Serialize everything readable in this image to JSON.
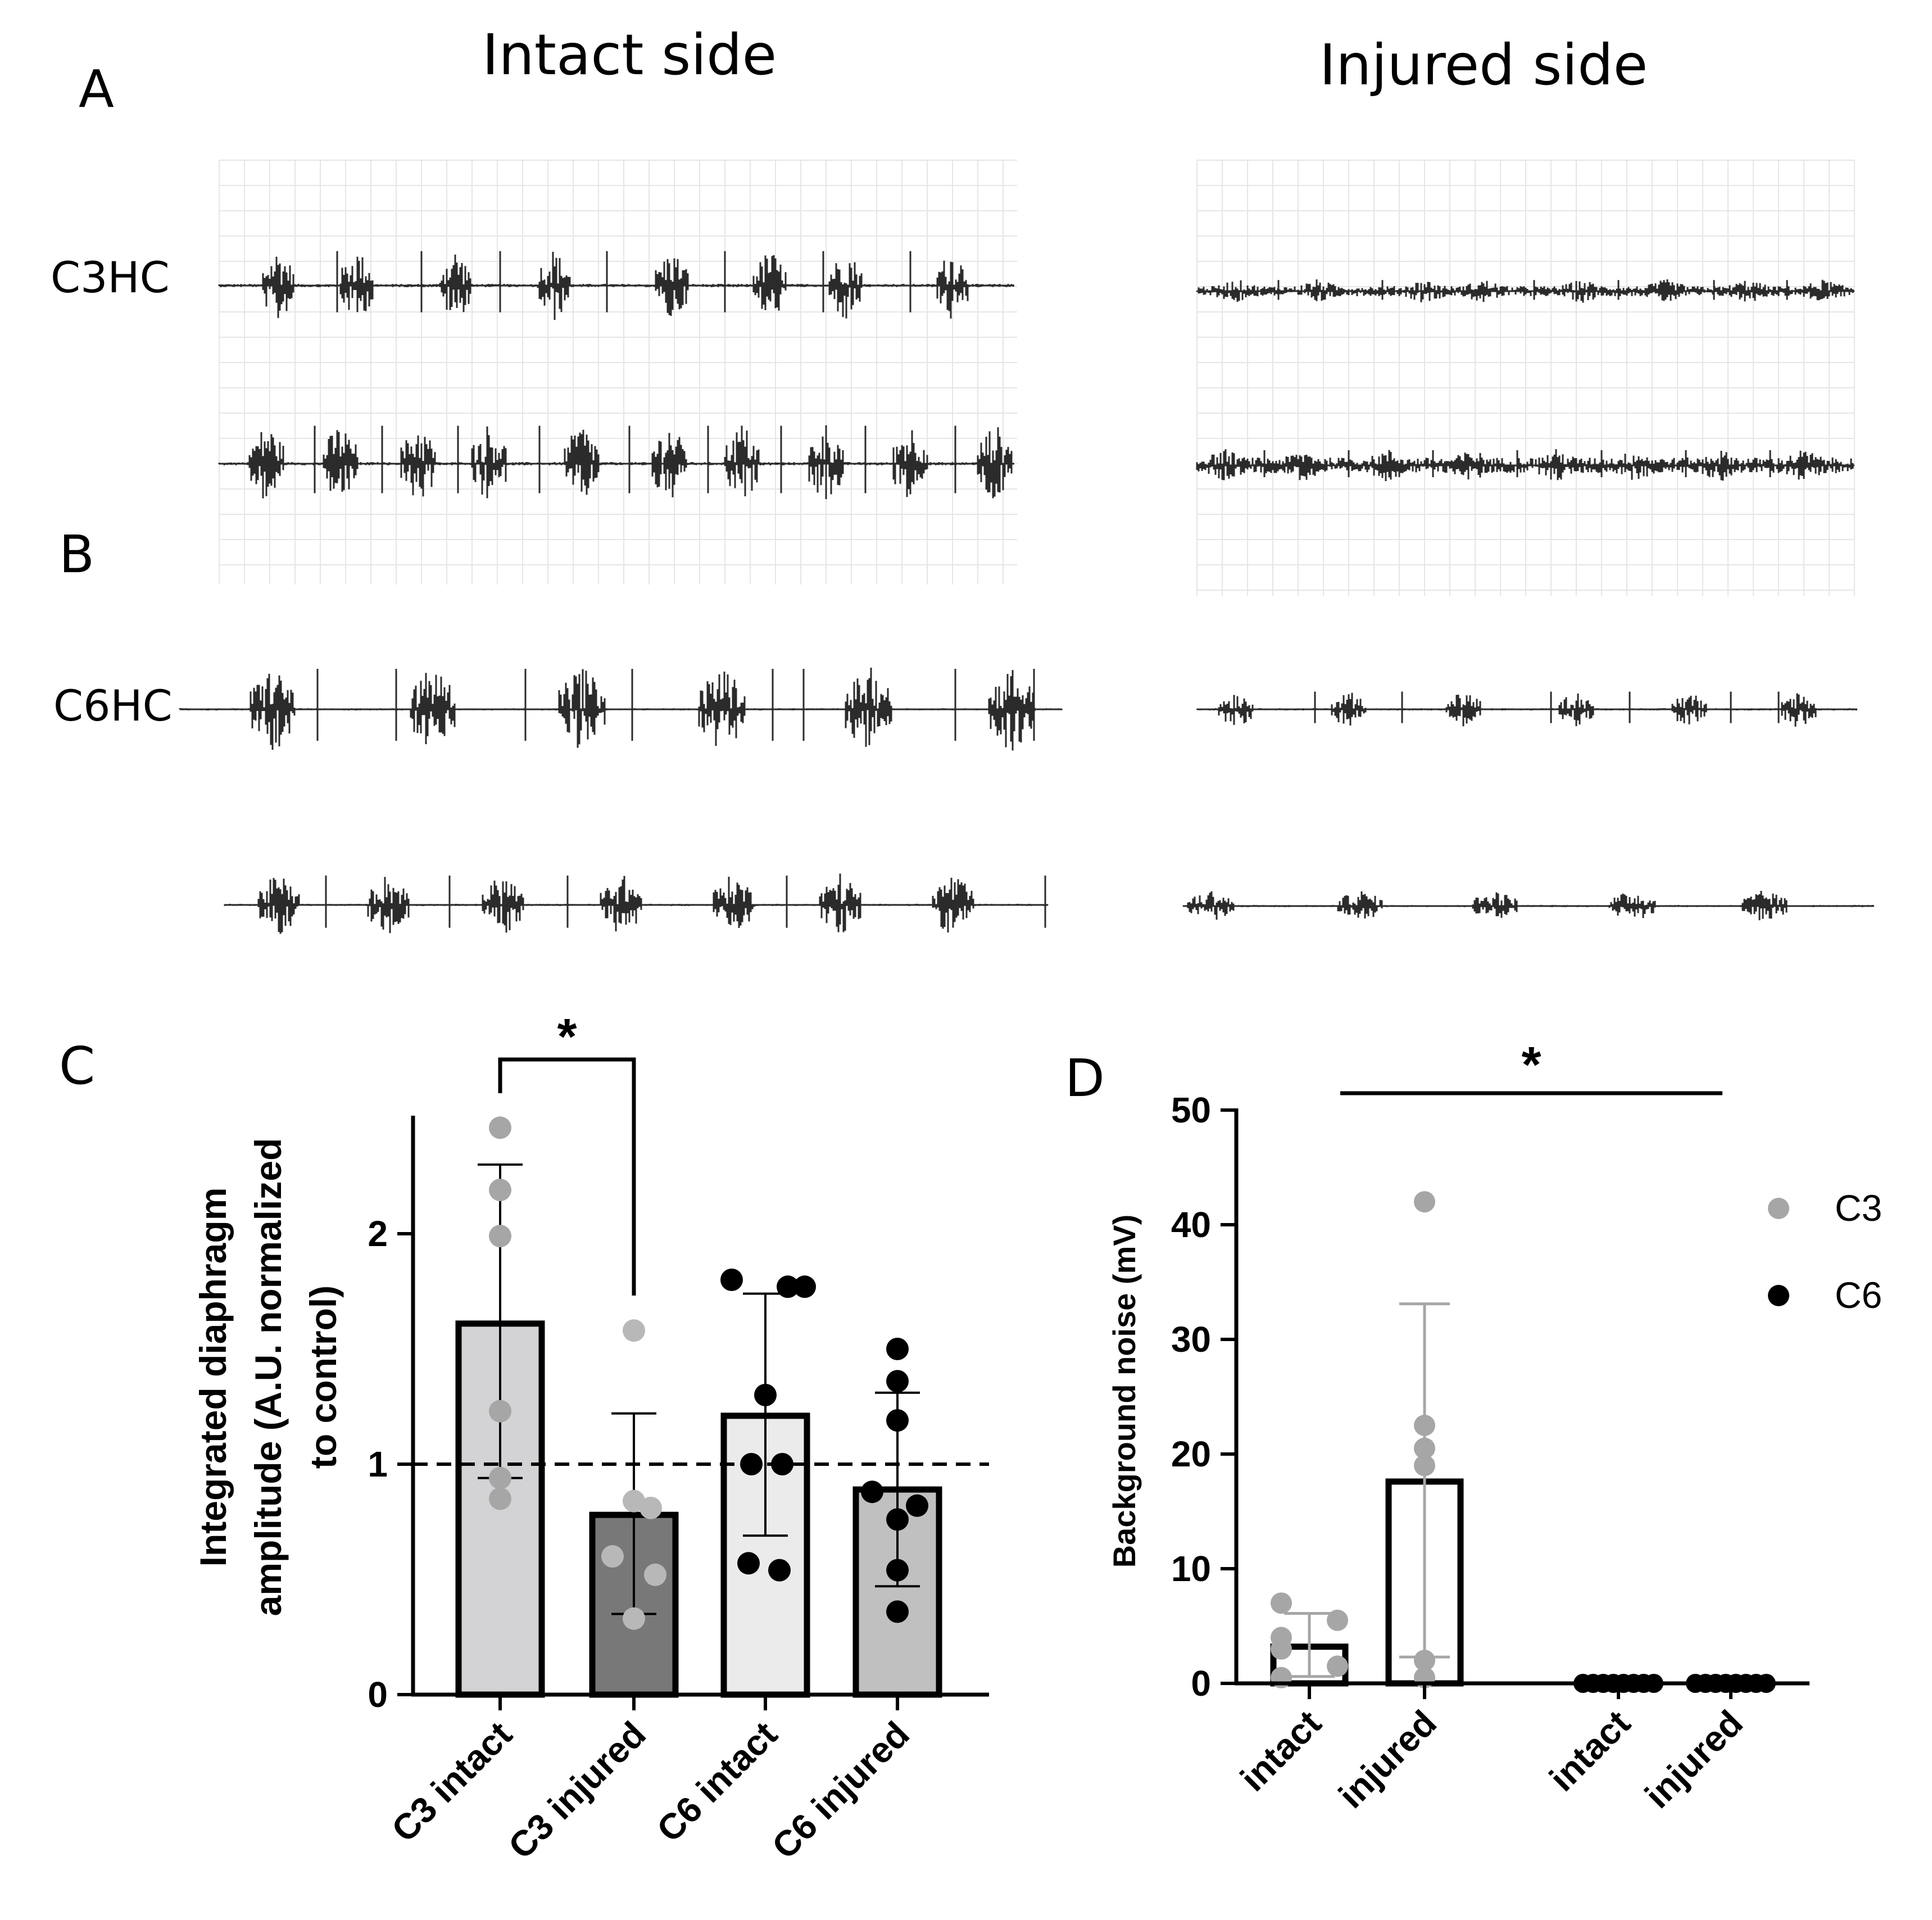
{
  "panel_labels": {
    "a": "A",
    "b": "B",
    "c": "C",
    "d": "D"
  },
  "headers": {
    "intact": "Intact side",
    "injured": "Injured side"
  },
  "row_labels": {
    "c3": "C3HC",
    "c6": "C6HC"
  },
  "colors": {
    "c3_intact_bar": "#d3d3d6",
    "c3_injured_bar": "#787878",
    "c6_intact_bar": "#ebebeb",
    "c6_injured_bar": "#c0c0c0",
    "c3_point": "#a6a6a6",
    "c6_point": "#000000",
    "trace": "#2b2b2b",
    "grid": "#e6e6e6"
  },
  "chart_data": [
    {
      "id": "panel-c",
      "type": "bar",
      "ylabel_lines": [
        "Integrated diaphragm",
        "amplitude (A.U. normalized",
        "to control)"
      ],
      "categories": [
        "C3 intact",
        "C3 injured",
        "C6 intact",
        "C6 injured"
      ],
      "means": [
        1.61,
        0.78,
        1.21,
        0.89
      ],
      "sd_upper": [
        2.3,
        1.22,
        1.74,
        1.31
      ],
      "sd_lower": [
        0.94,
        0.35,
        0.69,
        0.47
      ],
      "points": [
        [
          2.46,
          2.19,
          1.99,
          1.23,
          0.94,
          0.85
        ],
        [
          1.58,
          0.84,
          0.81,
          0.6,
          0.52,
          0.33
        ],
        [
          1.8,
          1.77,
          1.77,
          1.3,
          1.0,
          1.0,
          0.57,
          0.54
        ],
        [
          1.5,
          1.36,
          1.19,
          0.88,
          0.82,
          0.76,
          0.54,
          0.36
        ]
      ],
      "ylim": [
        0,
        2.5
      ],
      "yticks": [
        0,
        1,
        2
      ],
      "reference_line": 1,
      "significance": {
        "label": "*",
        "between": [
          0,
          1
        ]
      }
    },
    {
      "id": "panel-d",
      "type": "bar",
      "ylabel": "Background noise (mV)",
      "categories": [
        "intact",
        "injured",
        "intact",
        "injured"
      ],
      "groups": [
        "C3",
        "C3",
        "C6",
        "C6"
      ],
      "means": [
        3.2,
        17.6,
        0,
        0
      ],
      "sd_upper": [
        6.1,
        33.1,
        0,
        0
      ],
      "sd_lower": [
        0.6,
        2.3,
        0,
        0
      ],
      "points": [
        [
          7.0,
          5.5,
          4.0,
          3.0,
          1.5,
          0.5
        ],
        [
          42.0,
          22.5,
          20.5,
          19.0,
          2.0,
          0.5
        ],
        [
          0,
          0,
          0,
          0,
          0,
          0,
          0,
          0
        ],
        [
          0,
          0,
          0,
          0,
          0,
          0,
          0,
          0
        ]
      ],
      "ylim": [
        0,
        50
      ],
      "yticks": [
        0,
        10,
        20,
        30,
        40,
        50
      ],
      "legend": [
        {
          "label": "C3",
          "color": "#a6a6a6"
        },
        {
          "label": "C6",
          "color": "#000000"
        }
      ],
      "significance": {
        "label": "*"
      }
    }
  ]
}
